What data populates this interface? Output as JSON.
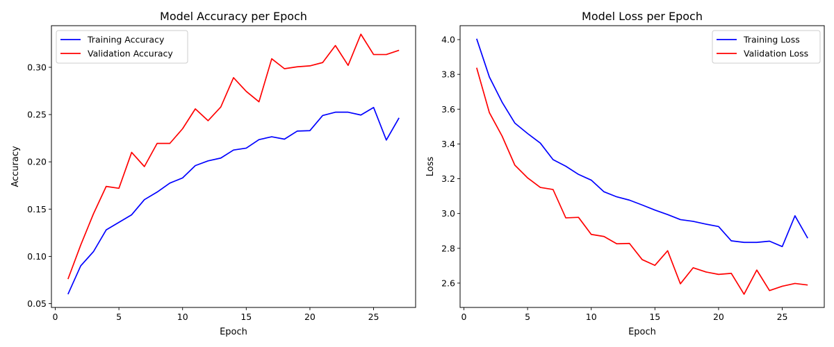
{
  "chart_data": [
    {
      "type": "line",
      "title": "Model Accuracy per Epoch",
      "xlabel": "Epoch",
      "ylabel": "Accuracy",
      "xlim": [
        -0.3,
        28.3
      ],
      "ylim": [
        0.046,
        0.344
      ],
      "xticks": [
        0,
        5,
        10,
        15,
        20,
        25
      ],
      "yticks": [
        0.05,
        0.1,
        0.15,
        0.2,
        0.25,
        0.3
      ],
      "ytick_decimals": 2,
      "grid": false,
      "legend_position": "top-left",
      "x": [
        1,
        2,
        3,
        4,
        5,
        6,
        7,
        8,
        9,
        10,
        11,
        12,
        13,
        14,
        15,
        16,
        17,
        18,
        19,
        20,
        21,
        22,
        23,
        24,
        25,
        26,
        27
      ],
      "series": [
        {
          "name": "Training Accuracy",
          "color": "#0000ff",
          "values": [
            0.06,
            0.09,
            0.105,
            0.128,
            0.136,
            0.144,
            0.16,
            0.168,
            0.1775,
            0.183,
            0.196,
            0.201,
            0.204,
            0.2125,
            0.2145,
            0.2235,
            0.2265,
            0.224,
            0.2325,
            0.233,
            0.249,
            0.2525,
            0.2525,
            0.2495,
            0.2575,
            0.223,
            0.2465
          ]
        },
        {
          "name": "Validation Accuracy",
          "color": "#ff0000",
          "values": [
            0.076,
            0.112,
            0.145,
            0.174,
            0.172,
            0.21,
            0.195,
            0.2195,
            0.2195,
            0.235,
            0.256,
            0.2435,
            0.258,
            0.289,
            0.2745,
            0.2635,
            0.309,
            0.2985,
            0.3005,
            0.3015,
            0.305,
            0.323,
            0.302,
            0.335,
            0.3135,
            0.3135,
            0.318
          ]
        }
      ]
    },
    {
      "type": "line",
      "title": "Model Loss per Epoch",
      "xlabel": "Epoch",
      "ylabel": "Loss",
      "xlim": [
        -0.3,
        28.3
      ],
      "ylim": [
        2.46,
        4.08
      ],
      "xticks": [
        0,
        5,
        10,
        15,
        20,
        25
      ],
      "yticks": [
        2.6,
        2.8,
        3.0,
        3.2,
        3.4,
        3.6,
        3.8,
        4.0
      ],
      "ytick_decimals": 1,
      "grid": false,
      "legend_position": "top-right",
      "x": [
        1,
        2,
        3,
        4,
        5,
        6,
        7,
        8,
        9,
        10,
        11,
        12,
        13,
        14,
        15,
        16,
        17,
        18,
        19,
        20,
        21,
        22,
        23,
        24,
        25,
        26,
        27
      ],
      "series": [
        {
          "name": "Training Loss",
          "color": "#0000ff",
          "values": [
            4.005,
            3.785,
            3.64,
            3.52,
            3.46,
            3.405,
            3.31,
            3.272,
            3.225,
            3.192,
            3.125,
            3.096,
            3.077,
            3.049,
            3.02,
            2.994,
            2.965,
            2.955,
            2.939,
            2.925,
            2.843,
            2.834,
            2.834,
            2.841,
            2.81,
            2.987,
            2.858
          ]
        },
        {
          "name": "Validation Loss",
          "color": "#ff0000",
          "values": [
            3.838,
            3.58,
            3.445,
            3.278,
            3.205,
            3.15,
            3.138,
            2.975,
            2.978,
            2.88,
            2.868,
            2.826,
            2.828,
            2.735,
            2.702,
            2.786,
            2.596,
            2.688,
            2.664,
            2.65,
            2.656,
            2.536,
            2.675,
            2.557,
            2.582,
            2.598,
            2.589
          ]
        }
      ]
    }
  ]
}
